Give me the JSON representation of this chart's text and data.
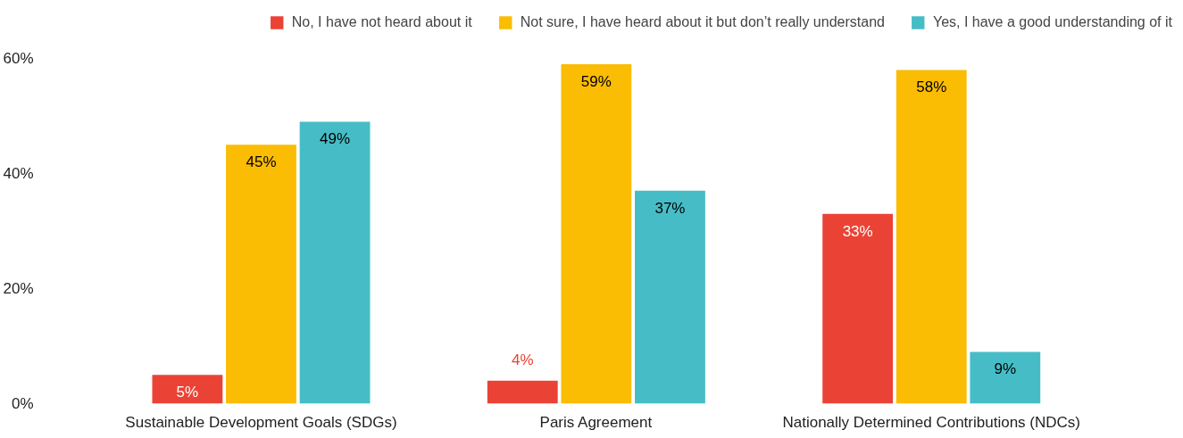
{
  "chart_data": {
    "type": "bar",
    "categories": [
      "Sustainable Development Goals (SDGs)",
      "Paris Agreement",
      "Nationally Determined Contributions (NDCs)"
    ],
    "series": [
      {
        "name": "No, I have not heard about it",
        "color": "#ea4335",
        "values": [
          5,
          4,
          33
        ],
        "value_labels": [
          "5%",
          "4%",
          "33%"
        ]
      },
      {
        "name": "Not sure, I have heard about it but don’t really understand",
        "color": "#fbbc04",
        "values": [
          45,
          59,
          58
        ],
        "value_labels": [
          "45%",
          "59%",
          "58%"
        ]
      },
      {
        "name": "Yes, I have a good understanding of it",
        "color": "#46bdc6",
        "values": [
          49,
          37,
          9
        ],
        "value_labels": [
          "49%",
          "37%",
          "9%"
        ]
      }
    ],
    "ylim": [
      0,
      60
    ],
    "yticks": [
      {
        "value": 0,
        "label": "0%"
      },
      {
        "value": 20,
        "label": "20%"
      },
      {
        "value": 40,
        "label": "40%"
      },
      {
        "value": 60,
        "label": "60%"
      }
    ],
    "grid": false,
    "legend": "top"
  }
}
